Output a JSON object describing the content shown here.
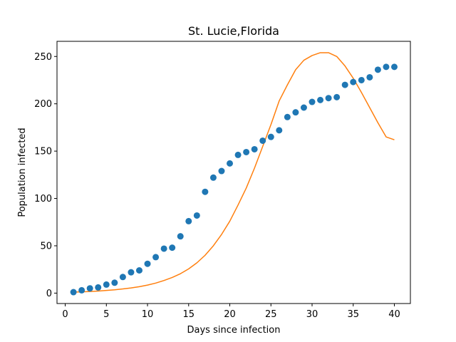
{
  "chart_data": {
    "type": "scatter",
    "title": "St. Lucie,Florida",
    "xlabel": "Days since infection",
    "ylabel": "Population infected",
    "xlim": [
      -1,
      41.95
    ],
    "ylim": [
      -11,
      266
    ],
    "xticks": [
      0,
      5,
      10,
      15,
      20,
      25,
      30,
      35,
      40
    ],
    "yticks": [
      0,
      50,
      100,
      150,
      200,
      250
    ],
    "grid": false,
    "legend": "none",
    "series": [
      {
        "kind": "scatter",
        "color": "#1f77b4",
        "x": [
          1,
          2,
          3,
          4,
          5,
          6,
          7,
          8,
          9,
          10,
          11,
          12,
          13,
          14,
          15,
          16,
          17,
          18,
          19,
          20,
          21,
          22,
          23,
          24,
          25,
          26,
          27,
          28,
          29,
          30,
          31,
          32,
          33,
          34,
          35,
          36,
          37,
          38,
          39,
          40
        ],
        "y": [
          1,
          3,
          5,
          6,
          9,
          11,
          17,
          22,
          24,
          31,
          38,
          47,
          48,
          60,
          76,
          82,
          107,
          122,
          129,
          137,
          146,
          149,
          152,
          161,
          165,
          172,
          186,
          191,
          196,
          202,
          204,
          206,
          207,
          220,
          223,
          225,
          228,
          236,
          239,
          239
        ]
      },
      {
        "kind": "line",
        "color": "#ff7f0e",
        "x": [
          1,
          2,
          3,
          4,
          5,
          6,
          7,
          8,
          9,
          10,
          11,
          12,
          13,
          14,
          15,
          16,
          17,
          18,
          19,
          20,
          21,
          22,
          23,
          24,
          25,
          26,
          27,
          28,
          29,
          30,
          31,
          32,
          33,
          34,
          35,
          36,
          37,
          38,
          39,
          40
        ],
        "y": [
          1,
          1.3,
          1.7,
          2.2,
          2.8,
          3.5,
          4.4,
          5.5,
          6.8,
          8.5,
          10.6,
          13.3,
          16.5,
          20.5,
          25.6,
          32,
          40,
          50,
          62,
          76,
          93,
          111,
          132,
          155,
          178,
          203,
          220,
          236,
          246,
          251,
          254,
          254,
          250,
          240,
          227,
          212,
          196,
          180,
          165,
          162
        ]
      }
    ]
  }
}
